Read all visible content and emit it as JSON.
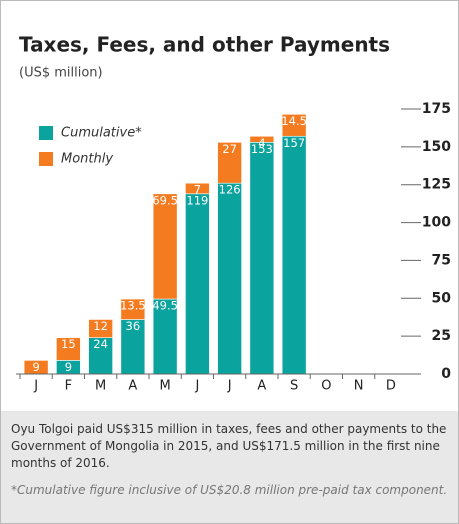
{
  "chart_data": {
    "type": "stacked-bar",
    "title": "Taxes, Fees, and other Payments",
    "subtitle": "(US$ million)",
    "categories": [
      "J",
      "F",
      "M",
      "A",
      "M",
      "J",
      "J",
      "A",
      "S",
      "O",
      "N",
      "D"
    ],
    "series": [
      {
        "name": "Cumulative*",
        "color": "#0aa39e",
        "values": [
          null,
          9,
          24,
          36,
          49.5,
          119,
          126,
          153,
          157,
          null,
          null,
          null
        ]
      },
      {
        "name": "Monthly",
        "color": "#f47b20",
        "values": [
          9,
          15,
          12,
          13.5,
          69.5,
          7,
          27,
          4,
          14.5,
          null,
          null,
          null
        ]
      }
    ],
    "ylim": [
      0,
      175
    ],
    "yticks": [
      0,
      25,
      50,
      75,
      100,
      125,
      150,
      175
    ],
    "caption": "Oyu Tolgoi paid US$315 million in taxes, fees and other payments to the Government of Mongolia in 2015, and US$171.5 million in the first nine months of 2016.",
    "footnote": "*Cumulative figure inclusive of US$20.8 million pre-paid tax component."
  }
}
